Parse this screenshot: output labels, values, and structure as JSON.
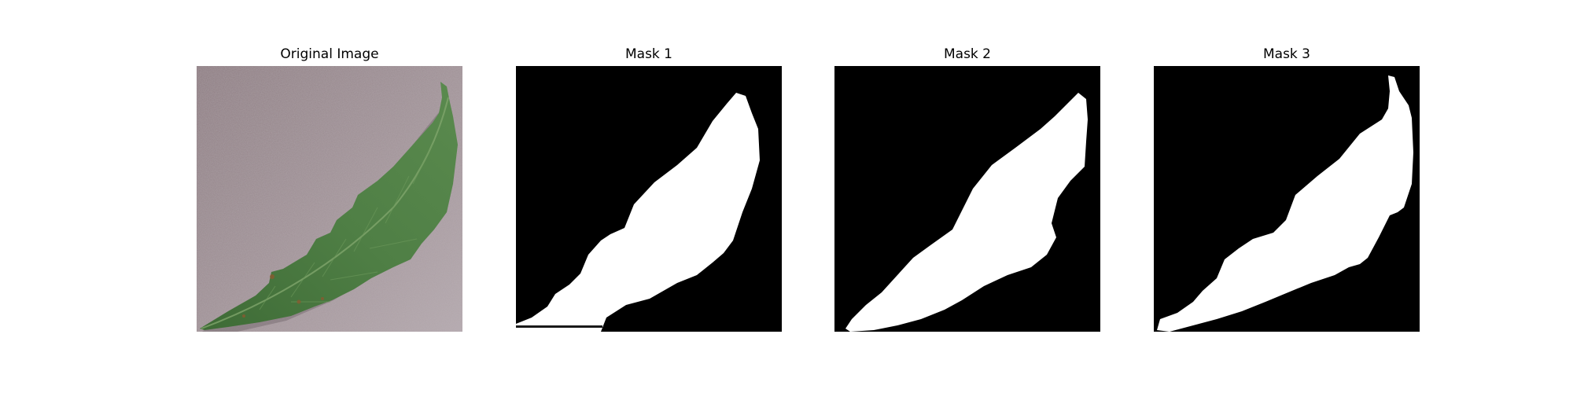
{
  "figure": {
    "panels": [
      {
        "title": "Original Image",
        "kind": "photo"
      },
      {
        "title": "Mask 1",
        "kind": "mask"
      },
      {
        "title": "Mask 2",
        "kind": "mask"
      },
      {
        "title": "Mask 3",
        "kind": "mask"
      }
    ]
  },
  "colors": {
    "background_photo": "#9a8c90",
    "leaf_green": "#4a7a40",
    "leaf_dark": "#2f5a2a",
    "mask_background": "#000000",
    "mask_foreground": "#ffffff"
  }
}
